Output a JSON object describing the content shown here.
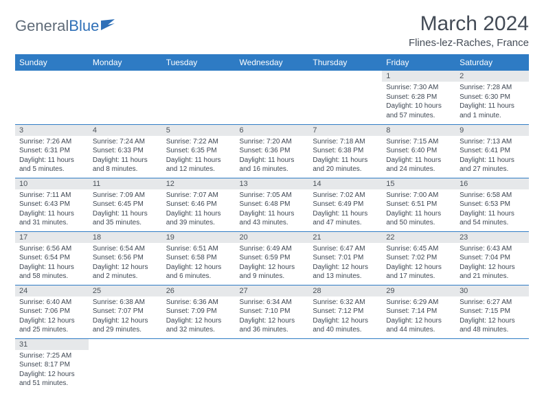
{
  "logo": {
    "text1": "General",
    "text2": "Blue"
  },
  "title": "March 2024",
  "location": "Flines-lez-Raches, France",
  "colors": {
    "header_bg": "#2e7bc4",
    "header_fg": "#ffffff",
    "daynum_bg": "#e6e8ea",
    "border": "#2e7bc4",
    "text": "#3d4652",
    "title": "#444c57",
    "logo_gray": "#5f6b78",
    "logo_blue": "#2e6fb7"
  },
  "weekdays": [
    "Sunday",
    "Monday",
    "Tuesday",
    "Wednesday",
    "Thursday",
    "Friday",
    "Saturday"
  ],
  "weeks": [
    [
      null,
      null,
      null,
      null,
      null,
      {
        "n": "1",
        "sr": "Sunrise: 7:30 AM",
        "ss": "Sunset: 6:28 PM",
        "dl1": "Daylight: 10 hours",
        "dl2": "and 57 minutes."
      },
      {
        "n": "2",
        "sr": "Sunrise: 7:28 AM",
        "ss": "Sunset: 6:30 PM",
        "dl1": "Daylight: 11 hours",
        "dl2": "and 1 minute."
      }
    ],
    [
      {
        "n": "3",
        "sr": "Sunrise: 7:26 AM",
        "ss": "Sunset: 6:31 PM",
        "dl1": "Daylight: 11 hours",
        "dl2": "and 5 minutes."
      },
      {
        "n": "4",
        "sr": "Sunrise: 7:24 AM",
        "ss": "Sunset: 6:33 PM",
        "dl1": "Daylight: 11 hours",
        "dl2": "and 8 minutes."
      },
      {
        "n": "5",
        "sr": "Sunrise: 7:22 AM",
        "ss": "Sunset: 6:35 PM",
        "dl1": "Daylight: 11 hours",
        "dl2": "and 12 minutes."
      },
      {
        "n": "6",
        "sr": "Sunrise: 7:20 AM",
        "ss": "Sunset: 6:36 PM",
        "dl1": "Daylight: 11 hours",
        "dl2": "and 16 minutes."
      },
      {
        "n": "7",
        "sr": "Sunrise: 7:18 AM",
        "ss": "Sunset: 6:38 PM",
        "dl1": "Daylight: 11 hours",
        "dl2": "and 20 minutes."
      },
      {
        "n": "8",
        "sr": "Sunrise: 7:15 AM",
        "ss": "Sunset: 6:40 PM",
        "dl1": "Daylight: 11 hours",
        "dl2": "and 24 minutes."
      },
      {
        "n": "9",
        "sr": "Sunrise: 7:13 AM",
        "ss": "Sunset: 6:41 PM",
        "dl1": "Daylight: 11 hours",
        "dl2": "and 27 minutes."
      }
    ],
    [
      {
        "n": "10",
        "sr": "Sunrise: 7:11 AM",
        "ss": "Sunset: 6:43 PM",
        "dl1": "Daylight: 11 hours",
        "dl2": "and 31 minutes."
      },
      {
        "n": "11",
        "sr": "Sunrise: 7:09 AM",
        "ss": "Sunset: 6:45 PM",
        "dl1": "Daylight: 11 hours",
        "dl2": "and 35 minutes."
      },
      {
        "n": "12",
        "sr": "Sunrise: 7:07 AM",
        "ss": "Sunset: 6:46 PM",
        "dl1": "Daylight: 11 hours",
        "dl2": "and 39 minutes."
      },
      {
        "n": "13",
        "sr": "Sunrise: 7:05 AM",
        "ss": "Sunset: 6:48 PM",
        "dl1": "Daylight: 11 hours",
        "dl2": "and 43 minutes."
      },
      {
        "n": "14",
        "sr": "Sunrise: 7:02 AM",
        "ss": "Sunset: 6:49 PM",
        "dl1": "Daylight: 11 hours",
        "dl2": "and 47 minutes."
      },
      {
        "n": "15",
        "sr": "Sunrise: 7:00 AM",
        "ss": "Sunset: 6:51 PM",
        "dl1": "Daylight: 11 hours",
        "dl2": "and 50 minutes."
      },
      {
        "n": "16",
        "sr": "Sunrise: 6:58 AM",
        "ss": "Sunset: 6:53 PM",
        "dl1": "Daylight: 11 hours",
        "dl2": "and 54 minutes."
      }
    ],
    [
      {
        "n": "17",
        "sr": "Sunrise: 6:56 AM",
        "ss": "Sunset: 6:54 PM",
        "dl1": "Daylight: 11 hours",
        "dl2": "and 58 minutes."
      },
      {
        "n": "18",
        "sr": "Sunrise: 6:54 AM",
        "ss": "Sunset: 6:56 PM",
        "dl1": "Daylight: 12 hours",
        "dl2": "and 2 minutes."
      },
      {
        "n": "19",
        "sr": "Sunrise: 6:51 AM",
        "ss": "Sunset: 6:58 PM",
        "dl1": "Daylight: 12 hours",
        "dl2": "and 6 minutes."
      },
      {
        "n": "20",
        "sr": "Sunrise: 6:49 AM",
        "ss": "Sunset: 6:59 PM",
        "dl1": "Daylight: 12 hours",
        "dl2": "and 9 minutes."
      },
      {
        "n": "21",
        "sr": "Sunrise: 6:47 AM",
        "ss": "Sunset: 7:01 PM",
        "dl1": "Daylight: 12 hours",
        "dl2": "and 13 minutes."
      },
      {
        "n": "22",
        "sr": "Sunrise: 6:45 AM",
        "ss": "Sunset: 7:02 PM",
        "dl1": "Daylight: 12 hours",
        "dl2": "and 17 minutes."
      },
      {
        "n": "23",
        "sr": "Sunrise: 6:43 AM",
        "ss": "Sunset: 7:04 PM",
        "dl1": "Daylight: 12 hours",
        "dl2": "and 21 minutes."
      }
    ],
    [
      {
        "n": "24",
        "sr": "Sunrise: 6:40 AM",
        "ss": "Sunset: 7:06 PM",
        "dl1": "Daylight: 12 hours",
        "dl2": "and 25 minutes."
      },
      {
        "n": "25",
        "sr": "Sunrise: 6:38 AM",
        "ss": "Sunset: 7:07 PM",
        "dl1": "Daylight: 12 hours",
        "dl2": "and 29 minutes."
      },
      {
        "n": "26",
        "sr": "Sunrise: 6:36 AM",
        "ss": "Sunset: 7:09 PM",
        "dl1": "Daylight: 12 hours",
        "dl2": "and 32 minutes."
      },
      {
        "n": "27",
        "sr": "Sunrise: 6:34 AM",
        "ss": "Sunset: 7:10 PM",
        "dl1": "Daylight: 12 hours",
        "dl2": "and 36 minutes."
      },
      {
        "n": "28",
        "sr": "Sunrise: 6:32 AM",
        "ss": "Sunset: 7:12 PM",
        "dl1": "Daylight: 12 hours",
        "dl2": "and 40 minutes."
      },
      {
        "n": "29",
        "sr": "Sunrise: 6:29 AM",
        "ss": "Sunset: 7:14 PM",
        "dl1": "Daylight: 12 hours",
        "dl2": "and 44 minutes."
      },
      {
        "n": "30",
        "sr": "Sunrise: 6:27 AM",
        "ss": "Sunset: 7:15 PM",
        "dl1": "Daylight: 12 hours",
        "dl2": "and 48 minutes."
      }
    ],
    [
      {
        "n": "31",
        "sr": "Sunrise: 7:25 AM",
        "ss": "Sunset: 8:17 PM",
        "dl1": "Daylight: 12 hours",
        "dl2": "and 51 minutes."
      },
      null,
      null,
      null,
      null,
      null,
      null
    ]
  ]
}
